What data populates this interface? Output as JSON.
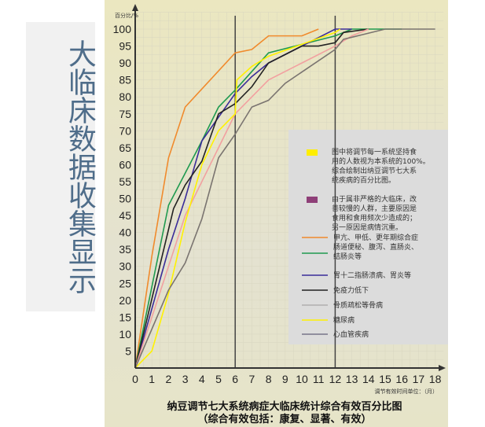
{
  "side_title": "大临床数据收集显示",
  "chart_data": {
    "type": "line",
    "title": "纳豆调节七大系统病症大临床统计综合有效百分比图",
    "subtitle": "（综合有效包括：康复、显著、有效）",
    "ylabel": "百分比/%",
    "xlabel": "调节有效时间单位：（月）",
    "xlim": [
      0,
      18
    ],
    "ylim": [
      0,
      100
    ],
    "xticks": [
      0,
      1,
      2,
      3,
      4,
      5,
      6,
      7,
      8,
      9,
      10,
      11,
      12,
      13,
      14,
      15,
      16,
      17,
      18
    ],
    "yticks": [
      5,
      10,
      15,
      20,
      25,
      30,
      35,
      40,
      45,
      50,
      55,
      60,
      65,
      70,
      75,
      80,
      85,
      90,
      95,
      100
    ],
    "reference_lines_x": [
      6,
      12
    ],
    "grid": true,
    "legend_position": "right",
    "legend_notes": [
      {
        "color": "#ffee00",
        "text": [
          "图中将调节每一系统坚持食",
          "用的人数视为本系统的100%。",
          "综合绘制出纳豆调节七大系",
          "统疾病的百分比图。"
        ]
      },
      {
        "color": "#8e3f78",
        "text": [
          "由于属非严格的大临床，改",
          "善较慢的人群，主要原因是",
          "食用和食用频次少造成的；",
          "另一原因是病情沉重。"
        ]
      }
    ],
    "series": [
      {
        "name": "甲亢、甲低、更年期综合症",
        "color": "#f08a2c",
        "x": [
          0,
          1,
          2,
          3,
          6,
          7,
          8,
          10,
          11
        ],
        "y": [
          0,
          33,
          62,
          77,
          93,
          94,
          98,
          98,
          100
        ]
      },
      {
        "name": "肠道便秘、腹泻、直肠炎、结肠炎等",
        "color": "#1f9a4f",
        "x": [
          0,
          2,
          4,
          5,
          6,
          8,
          12,
          13,
          16
        ],
        "y": [
          0,
          48,
          67,
          77,
          82,
          93,
          98,
          100,
          100
        ]
      },
      {
        "name": "胃十二指肠溃病、胃炎等",
        "color": "#3a2c99",
        "x": [
          0,
          2,
          3,
          4,
          5,
          6,
          7,
          8,
          10,
          12,
          13
        ],
        "y": [
          0,
          35,
          50,
          67,
          74,
          81,
          86,
          90,
          95,
          100,
          100
        ]
      },
      {
        "name": "免疫力低下",
        "color": "#222222",
        "x": [
          0,
          2.3,
          3,
          4,
          5,
          6,
          7,
          8,
          10,
          11,
          12,
          12.5,
          14
        ],
        "y": [
          0,
          47,
          54,
          61,
          75,
          78,
          83,
          90,
          95,
          95,
          96,
          99,
          100
        ]
      },
      {
        "name": "骨质疏松等骨病",
        "color": "#f2a0a0",
        "x": [
          0,
          3,
          4,
          5,
          6,
          7,
          8,
          10,
          12,
          13,
          14
        ],
        "y": [
          0,
          45,
          55,
          65,
          75,
          80,
          85,
          90,
          95,
          98,
          100
        ]
      },
      {
        "name": "糖尿病",
        "color": "#fff200",
        "x": [
          0,
          1,
          2,
          3,
          4,
          5,
          6,
          6.1,
          7,
          8,
          12,
          12.3
        ],
        "y": [
          0,
          5,
          22,
          43,
          60,
          70,
          75,
          85,
          89,
          92,
          99,
          100
        ]
      },
      {
        "name": "心血管疾病",
        "color": "#7a7470",
        "x": [
          0,
          2,
          3,
          4,
          5,
          6,
          7,
          8,
          9,
          12,
          12.5,
          15,
          18
        ],
        "y": [
          0,
          23,
          31,
          44,
          62,
          69,
          77,
          79,
          84,
          94,
          97,
          100,
          100
        ]
      }
    ]
  }
}
